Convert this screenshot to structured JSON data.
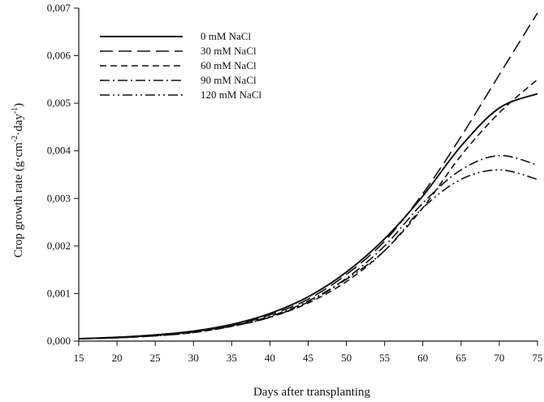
{
  "chart_data": {
    "type": "line",
    "xlabel": "Days after transplanting",
    "ylabel_main": "Crop growth rate (g·cm",
    "ylabel_sup1": "-2",
    "ylabel_mid": "·day",
    "ylabel_sup2": "-1",
    "ylabel_end": ")",
    "xlim": [
      15,
      75
    ],
    "ylim": [
      0,
      0.007
    ],
    "x_ticks": [
      15,
      20,
      25,
      30,
      35,
      40,
      45,
      50,
      55,
      60,
      65,
      70,
      75
    ],
    "y_ticks": [
      0,
      0.001,
      0.002,
      0.003,
      0.004,
      0.005,
      0.006,
      0.007
    ],
    "x_tick_labels": [
      "15",
      "20",
      "25",
      "30",
      "35",
      "40",
      "45",
      "50",
      "55",
      "60",
      "65",
      "70",
      "75"
    ],
    "y_tick_labels": [
      "0,000",
      "0,001",
      "0,002",
      "0,003",
      "0,004",
      "0,005",
      "0,006",
      "0,007"
    ],
    "grid": false,
    "legend_position": "top-left",
    "x": [
      15,
      20,
      25,
      30,
      35,
      40,
      45,
      50,
      55,
      60,
      65,
      70,
      75
    ],
    "series": [
      {
        "name": "0 mM NaCl",
        "dash": "solid",
        "values": [
          5e-05,
          8e-05,
          0.00013,
          0.00021,
          0.00035,
          0.00058,
          0.00093,
          0.00145,
          0.00215,
          0.00305,
          0.0041,
          0.0049,
          0.0052
        ]
      },
      {
        "name": "30 mM NaCl",
        "dash": "long-dash",
        "values": [
          5e-05,
          8e-05,
          0.00012,
          0.0002,
          0.00033,
          0.00055,
          0.00088,
          0.0014,
          0.0021,
          0.0031,
          0.0043,
          0.0056,
          0.0069
        ]
      },
      {
        "name": "60 mM NaCl",
        "dash": "dash",
        "values": [
          5e-05,
          7e-05,
          0.00011,
          0.00018,
          0.00031,
          0.0005,
          0.0008,
          0.00125,
          0.0019,
          0.0028,
          0.0039,
          0.0048,
          0.0055
        ]
      },
      {
        "name": "90 mM NaCl",
        "dash": "dash-dot",
        "values": [
          5e-05,
          7e-05,
          0.00012,
          0.00019,
          0.00032,
          0.00052,
          0.00084,
          0.00132,
          0.002,
          0.0029,
          0.0036,
          0.0039,
          0.0037
        ]
      },
      {
        "name": "120 mM NaCl",
        "dash": "dash-dot-dot",
        "values": [
          5e-05,
          7e-05,
          0.00011,
          0.00018,
          0.00031,
          0.0005,
          0.00082,
          0.0013,
          0.0019,
          0.0028,
          0.0034,
          0.0036,
          0.0034
        ]
      }
    ],
    "line_color": "#111111"
  }
}
